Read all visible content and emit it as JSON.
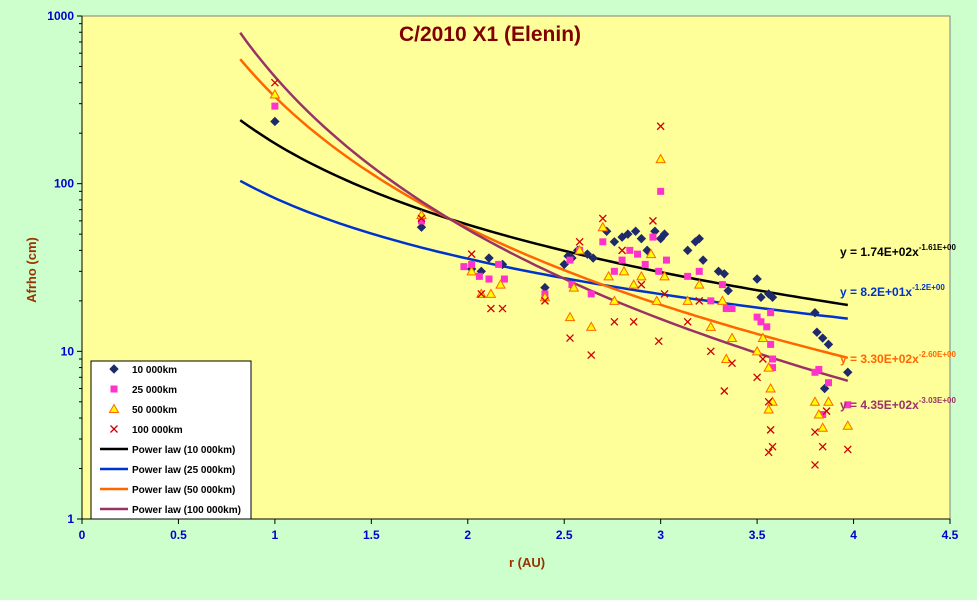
{
  "chart_data": {
    "type": "scatter",
    "title": "C/2010 X1 (Elenin)",
    "xlabel": "r (AU)",
    "ylabel": "Afrho (cm)",
    "xlim": [
      0,
      4.5
    ],
    "ylim": [
      1,
      1000
    ],
    "y_scale": "log",
    "x_ticks": [
      "0",
      "0.5",
      "1",
      "1.5",
      "2",
      "2.5",
      "3",
      "3.5",
      "4",
      "4.5"
    ],
    "y_ticks": [
      "1",
      "10",
      "100",
      "1000"
    ],
    "grid": false,
    "legend_position": "bottom-left",
    "colors": {
      "plot_bg": "#ffff99",
      "page_bg": "#ccffcc",
      "tick_text": "#0000cc",
      "axis_title": "#993300",
      "title": "#800000"
    },
    "series": [
      {
        "name": "10 000km",
        "marker": "diamond",
        "color": "#1f2a6b",
        "points": [
          [
            1.0,
            235
          ],
          [
            1.76,
            55
          ],
          [
            2.02,
            31
          ],
          [
            2.07,
            30
          ],
          [
            2.11,
            36
          ],
          [
            2.18,
            33
          ],
          [
            2.4,
            24
          ],
          [
            2.5,
            33
          ],
          [
            2.52,
            37
          ],
          [
            2.54,
            36
          ],
          [
            2.57,
            40
          ],
          [
            2.62,
            38
          ],
          [
            2.65,
            36
          ],
          [
            2.72,
            52
          ],
          [
            2.76,
            45
          ],
          [
            2.8,
            48
          ],
          [
            2.83,
            50
          ],
          [
            2.87,
            52
          ],
          [
            2.9,
            47
          ],
          [
            2.93,
            40
          ],
          [
            2.97,
            52
          ],
          [
            3.0,
            47
          ],
          [
            3.02,
            50
          ],
          [
            3.14,
            40
          ],
          [
            3.18,
            45
          ],
          [
            3.2,
            47
          ],
          [
            3.22,
            35
          ],
          [
            3.3,
            30
          ],
          [
            3.33,
            29
          ],
          [
            3.35,
            23
          ],
          [
            3.5,
            27
          ],
          [
            3.52,
            21
          ],
          [
            3.56,
            22
          ],
          [
            3.58,
            21
          ],
          [
            3.8,
            17
          ],
          [
            3.81,
            13
          ],
          [
            3.84,
            12
          ],
          [
            3.87,
            11
          ],
          [
            3.97,
            7.5
          ],
          [
            3.85,
            6
          ]
        ]
      },
      {
        "name": "25 000km",
        "marker": "square",
        "color": "#ff33cc",
        "points": [
          [
            1.0,
            290
          ],
          [
            1.76,
            60
          ],
          [
            1.98,
            32
          ],
          [
            2.02,
            33
          ],
          [
            2.06,
            28
          ],
          [
            2.11,
            27
          ],
          [
            2.16,
            33
          ],
          [
            2.19,
            27
          ],
          [
            2.4,
            22
          ],
          [
            2.53,
            35
          ],
          [
            2.54,
            25
          ],
          [
            2.58,
            40
          ],
          [
            2.64,
            22
          ],
          [
            2.7,
            45
          ],
          [
            2.76,
            30
          ],
          [
            2.8,
            35
          ],
          [
            2.84,
            40
          ],
          [
            2.88,
            38
          ],
          [
            2.92,
            33
          ],
          [
            2.96,
            48
          ],
          [
            2.99,
            30
          ],
          [
            3.0,
            90
          ],
          [
            3.03,
            35
          ],
          [
            3.14,
            28
          ],
          [
            3.2,
            30
          ],
          [
            3.26,
            20
          ],
          [
            3.32,
            25
          ],
          [
            3.34,
            18
          ],
          [
            3.37,
            18
          ],
          [
            3.5,
            16
          ],
          [
            3.52,
            15
          ],
          [
            3.55,
            14
          ],
          [
            3.57,
            17
          ],
          [
            3.57,
            11
          ],
          [
            3.58,
            9
          ],
          [
            3.58,
            8
          ],
          [
            3.8,
            7.5
          ],
          [
            3.82,
            7.8
          ],
          [
            3.84,
            4.2
          ],
          [
            3.87,
            6.5
          ],
          [
            3.97,
            4.8
          ]
        ]
      },
      {
        "name": "50 000km",
        "marker": "triangle",
        "color": "#ff6600",
        "points": [
          [
            1.0,
            340
          ],
          [
            1.76,
            65
          ],
          [
            2.02,
            30
          ],
          [
            2.07,
            22
          ],
          [
            2.12,
            22
          ],
          [
            2.17,
            25
          ],
          [
            2.4,
            21
          ],
          [
            2.53,
            16
          ],
          [
            2.55,
            24
          ],
          [
            2.58,
            40
          ],
          [
            2.64,
            14
          ],
          [
            2.7,
            55
          ],
          [
            2.73,
            28
          ],
          [
            2.76,
            20
          ],
          [
            2.81,
            30
          ],
          [
            2.86,
            25
          ],
          [
            2.9,
            28
          ],
          [
            2.95,
            38
          ],
          [
            2.98,
            20
          ],
          [
            3.0,
            140
          ],
          [
            3.02,
            28
          ],
          [
            3.14,
            20
          ],
          [
            3.2,
            25
          ],
          [
            3.26,
            14
          ],
          [
            3.32,
            20
          ],
          [
            3.34,
            9
          ],
          [
            3.37,
            12
          ],
          [
            3.5,
            10
          ],
          [
            3.53,
            12
          ],
          [
            3.56,
            8
          ],
          [
            3.57,
            6
          ],
          [
            3.58,
            5
          ],
          [
            3.56,
            4.5
          ],
          [
            3.8,
            5
          ],
          [
            3.82,
            4.2
          ],
          [
            3.84,
            3.5
          ],
          [
            3.87,
            5
          ],
          [
            3.97,
            3.6
          ]
        ]
      },
      {
        "name": "100 000km",
        "marker": "x",
        "color": "#cc0000",
        "points": [
          [
            1.0,
            400
          ],
          [
            1.76,
            62
          ],
          [
            2.02,
            38
          ],
          [
            2.07,
            22
          ],
          [
            2.12,
            18
          ],
          [
            2.18,
            18
          ],
          [
            2.4,
            20
          ],
          [
            2.53,
            12
          ],
          [
            2.58,
            45
          ],
          [
            2.64,
            9.5
          ],
          [
            2.7,
            62
          ],
          [
            2.76,
            15
          ],
          [
            2.8,
            40
          ],
          [
            2.86,
            15
          ],
          [
            2.9,
            25
          ],
          [
            2.96,
            60
          ],
          [
            2.99,
            11.5
          ],
          [
            3.0,
            220
          ],
          [
            3.02,
            22
          ],
          [
            3.14,
            15
          ],
          [
            3.2,
            20
          ],
          [
            3.26,
            10
          ],
          [
            3.33,
            5.8
          ],
          [
            3.37,
            8.5
          ],
          [
            3.5,
            7
          ],
          [
            3.53,
            9
          ],
          [
            3.56,
            5
          ],
          [
            3.57,
            3.4
          ],
          [
            3.58,
            2.7
          ],
          [
            3.56,
            2.5
          ],
          [
            3.8,
            3.3
          ],
          [
            3.8,
            2.1
          ],
          [
            3.84,
            2.7
          ],
          [
            3.86,
            4.4
          ],
          [
            3.97,
            2.6
          ]
        ]
      }
    ],
    "fits": [
      {
        "name": "Power law (10 000km)",
        "color": "#000000",
        "a": 174,
        "b": -1.61,
        "x_range": [
          0.82,
          3.97
        ],
        "eq_prefix": "y = 1.74E+02x",
        "eq_exp": "-1.61E+00"
      },
      {
        "name": "Power law (25 000km)",
        "color": "#0033cc",
        "a": 82,
        "b": -1.2,
        "x_range": [
          0.82,
          3.97
        ],
        "eq_prefix": "y = 8.2E+01x",
        "eq_exp": "-1.2E+00"
      },
      {
        "name": "Power law (50 000km)",
        "color": "#ff6600",
        "a": 330,
        "b": -2.6,
        "x_range": [
          0.82,
          3.97
        ],
        "eq_prefix": "y = 3.30E+02x",
        "eq_exp": "-2.60E+00"
      },
      {
        "name": "Power law (100 000km)",
        "color": "#993366",
        "a": 435,
        "b": -3.03,
        "x_range": [
          0.82,
          3.97
        ],
        "eq_prefix": "y = 4.35E+02x",
        "eq_exp": "-3.03E+00"
      }
    ]
  }
}
